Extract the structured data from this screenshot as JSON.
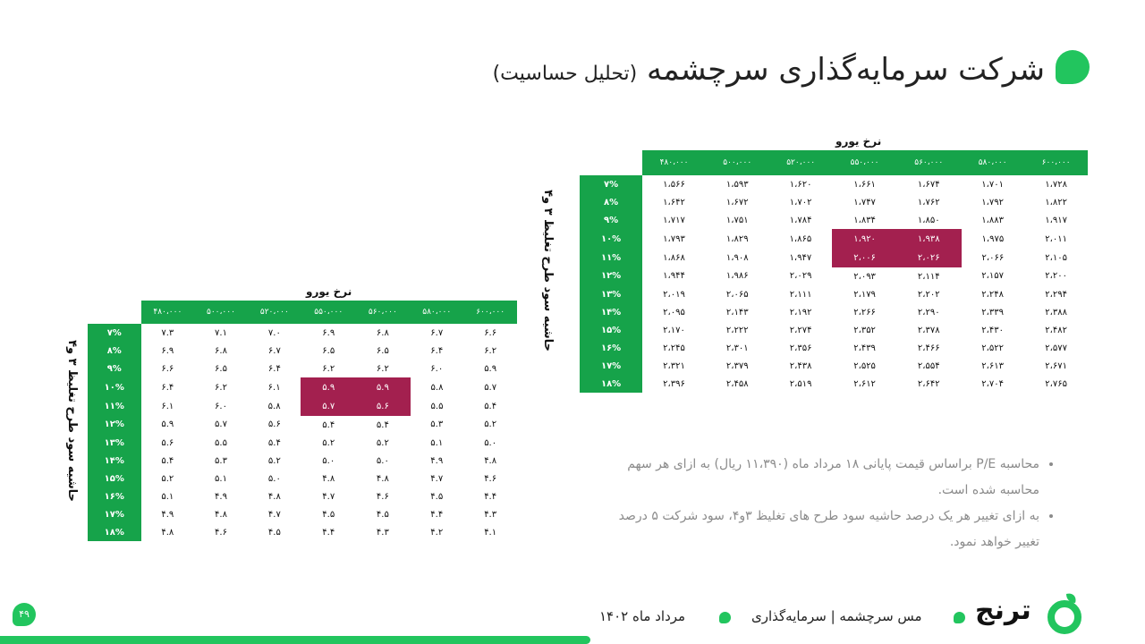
{
  "title": {
    "main": "شرکت سرمایه‌گذاری سرچشمه",
    "sub": "(تحلیل حساسیت)"
  },
  "colors": {
    "accent": "#22c55e",
    "header_green": "#16a34a",
    "highlight": "#a3204f"
  },
  "table_left": {
    "col_axis_label": "نرخ یورو",
    "row_axis_label": "حاشیه سود طرح تغلیظ ۳ و۴",
    "col_headers": [
      "۴۸۰،۰۰۰",
      "۵۰۰،۰۰۰",
      "۵۲۰،۰۰۰",
      "۵۵۰،۰۰۰",
      "۵۶۰،۰۰۰",
      "۵۸۰،۰۰۰",
      "۶۰۰،۰۰۰"
    ],
    "rows": [
      {
        "label": "۷%",
        "values": [
          "۷.۳",
          "۷.۱",
          "۷.۰",
          "۶.۹",
          "۶.۸",
          "۶.۷",
          "۶.۶"
        ]
      },
      {
        "label": "۸%",
        "values": [
          "۶.۹",
          "۶.۸",
          "۶.۷",
          "۶.۵",
          "۶.۵",
          "۶.۴",
          "۶.۲"
        ]
      },
      {
        "label": "۹%",
        "values": [
          "۶.۶",
          "۶.۵",
          "۶.۴",
          "۶.۲",
          "۶.۲",
          "۶.۰",
          "۵.۹"
        ]
      },
      {
        "label": "۱۰%",
        "values": [
          "۶.۴",
          "۶.۲",
          "۶.۱",
          "۵.۹",
          "۵.۹",
          "۵.۸",
          "۵.۷"
        ]
      },
      {
        "label": "۱۱%",
        "values": [
          "۶.۱",
          "۶.۰",
          "۵.۸",
          "۵.۷",
          "۵.۶",
          "۵.۵",
          "۵.۴"
        ]
      },
      {
        "label": "۱۲%",
        "values": [
          "۵.۹",
          "۵.۷",
          "۵.۶",
          "۵.۴",
          "۵.۴",
          "۵.۳",
          "۵.۲"
        ]
      },
      {
        "label": "۱۳%",
        "values": [
          "۵.۶",
          "۵.۵",
          "۵.۴",
          "۵.۲",
          "۵.۲",
          "۵.۱",
          "۵.۰"
        ]
      },
      {
        "label": "۱۴%",
        "values": [
          "۵.۴",
          "۵.۳",
          "۵.۲",
          "۵.۰",
          "۵.۰",
          "۴.۹",
          "۴.۸"
        ]
      },
      {
        "label": "۱۵%",
        "values": [
          "۵.۲",
          "۵.۱",
          "۵.۰",
          "۴.۸",
          "۴.۸",
          "۴.۷",
          "۴.۶"
        ]
      },
      {
        "label": "۱۶%",
        "values": [
          "۵.۱",
          "۴.۹",
          "۴.۸",
          "۴.۷",
          "۴.۶",
          "۴.۵",
          "۴.۴"
        ]
      },
      {
        "label": "۱۷%",
        "values": [
          "۴.۹",
          "۴.۸",
          "۴.۷",
          "۴.۵",
          "۴.۵",
          "۴.۴",
          "۴.۳"
        ]
      },
      {
        "label": "۱۸%",
        "values": [
          "۴.۸",
          "۴.۶",
          "۴.۵",
          "۴.۴",
          "۴.۳",
          "۴.۲",
          "۴.۱"
        ]
      }
    ]
  },
  "table_right": {
    "col_axis_label": "نرخ یورو",
    "row_axis_label": "حاشیه سود طرح تغلیظ ۳ و۴",
    "col_headers": [
      "۴۸۰،۰۰۰",
      "۵۰۰،۰۰۰",
      "۵۲۰،۰۰۰",
      "۵۵۰،۰۰۰",
      "۵۶۰،۰۰۰",
      "۵۸۰،۰۰۰",
      "۶۰۰،۰۰۰"
    ],
    "rows": [
      {
        "label": "۷%",
        "values": [
          "۱،۵۶۶",
          "۱،۵۹۳",
          "۱،۶۲۰",
          "۱،۶۶۱",
          "۱،۶۷۴",
          "۱،۷۰۱",
          "۱،۷۲۸"
        ]
      },
      {
        "label": "۸%",
        "values": [
          "۱،۶۴۲",
          "۱،۶۷۲",
          "۱،۷۰۲",
          "۱،۷۴۷",
          "۱،۷۶۲",
          "۱،۷۹۲",
          "۱،۸۲۲"
        ]
      },
      {
        "label": "۹%",
        "values": [
          "۱،۷۱۷",
          "۱،۷۵۱",
          "۱،۷۸۴",
          "۱،۸۳۴",
          "۱،۸۵۰",
          "۱،۸۸۳",
          "۱،۹۱۷"
        ]
      },
      {
        "label": "۱۰%",
        "values": [
          "۱،۷۹۳",
          "۱،۸۲۹",
          "۱،۸۶۵",
          "۱،۹۲۰",
          "۱،۹۳۸",
          "۱،۹۷۵",
          "۲،۰۱۱"
        ]
      },
      {
        "label": "۱۱%",
        "values": [
          "۱،۸۶۸",
          "۱،۹۰۸",
          "۱،۹۴۷",
          "۲،۰۰۶",
          "۲،۰۲۶",
          "۲،۰۶۶",
          "۲،۱۰۵"
        ]
      },
      {
        "label": "۱۲%",
        "values": [
          "۱،۹۴۴",
          "۱،۹۸۶",
          "۲،۰۲۹",
          "۲،۰۹۳",
          "۲،۱۱۴",
          "۲،۱۵۷",
          "۲،۲۰۰"
        ]
      },
      {
        "label": "۱۳%",
        "values": [
          "۲،۰۱۹",
          "۲،۰۶۵",
          "۲،۱۱۱",
          "۲،۱۷۹",
          "۲،۲۰۲",
          "۲،۲۴۸",
          "۲،۲۹۴"
        ]
      },
      {
        "label": "۱۴%",
        "values": [
          "۲،۰۹۵",
          "۲،۱۴۳",
          "۲،۱۹۲",
          "۲،۲۶۶",
          "۲،۲۹۰",
          "۲،۳۳۹",
          "۲،۳۸۸"
        ]
      },
      {
        "label": "۱۵%",
        "values": [
          "۲،۱۷۰",
          "۲،۲۲۲",
          "۲،۲۷۴",
          "۲،۳۵۲",
          "۲،۳۷۸",
          "۲،۴۳۰",
          "۲،۴۸۲"
        ]
      },
      {
        "label": "۱۶%",
        "values": [
          "۲،۲۴۵",
          "۲،۳۰۱",
          "۲،۳۵۶",
          "۲،۴۳۹",
          "۲،۴۶۶",
          "۲،۵۲۲",
          "۲،۵۷۷"
        ]
      },
      {
        "label": "۱۷%",
        "values": [
          "۲،۳۲۱",
          "۲،۳۷۹",
          "۲،۴۳۸",
          "۲،۵۲۵",
          "۲،۵۵۴",
          "۲،۶۱۳",
          "۲،۶۷۱"
        ]
      },
      {
        "label": "۱۸%",
        "values": [
          "۲،۳۹۶",
          "۲،۴۵۸",
          "۲،۵۱۹",
          "۲،۶۱۲",
          "۲،۶۴۲",
          "۲،۷۰۴",
          "۲،۷۶۵"
        ]
      }
    ]
  },
  "highlighted_cells": [
    [
      3,
      3
    ],
    [
      3,
      4
    ],
    [
      4,
      3
    ],
    [
      4,
      4
    ]
  ],
  "notes": [
    "محاسبه P/E براساس قیمت پایانی ۱۸ مرداد ماه (۱۱،۳۹۰ ریال) به ازای هر سهم محاسبه شده است.",
    "به ازای تغییر هر یک درصد حاشیه سود طرح های تغلیظ ۳و۴، سود شرکت ۵ درصد تغییر خواهد نمود."
  ],
  "footer": {
    "page_number": "۴۹",
    "date": "مرداد ماه ۱۴۰۲",
    "company": "مس سرچشمه | سرمایه‌گذاری",
    "logo_text": "ترنج"
  }
}
